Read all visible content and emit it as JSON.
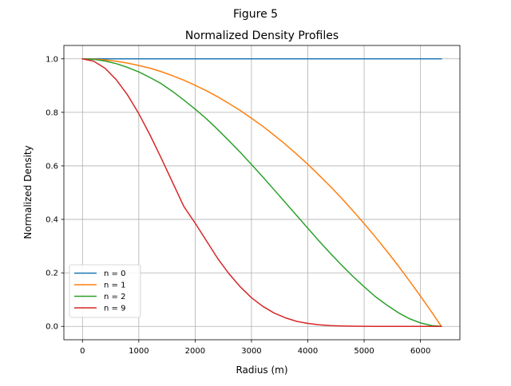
{
  "figure": {
    "suptitle": "Figure 5"
  },
  "chart_data": {
    "type": "line",
    "title": "Normalized Density Profiles",
    "xlabel": "Radius (m)",
    "ylabel": "Normalized Density",
    "xlim": [
      -330,
      6700
    ],
    "ylim": [
      -0.05,
      1.05
    ],
    "xticks": [
      0,
      1000,
      2000,
      3000,
      4000,
      5000,
      6000
    ],
    "xtick_labels": [
      "0",
      "1000",
      "2000",
      "3000",
      "4000",
      "5000",
      "6000"
    ],
    "yticks": [
      0.0,
      0.2,
      0.4,
      0.6,
      0.8,
      1.0
    ],
    "ytick_labels": [
      "0.0",
      "0.2",
      "0.4",
      "0.6",
      "0.8",
      "1.0"
    ],
    "grid": true,
    "legend_position": "lower-left",
    "x": [
      0,
      200,
      400,
      600,
      800,
      1000,
      1200,
      1400,
      1600,
      1800,
      2000,
      2200,
      2400,
      2600,
      2800,
      3000,
      3200,
      3400,
      3600,
      3800,
      4000,
      4200,
      4400,
      4600,
      4800,
      5000,
      5200,
      5400,
      5600,
      5800,
      6000,
      6200,
      6371
    ],
    "series": [
      {
        "name": "n = 0",
        "color": "#1f77b4",
        "values": [
          1.0,
          1.0,
          1.0,
          1.0,
          1.0,
          1.0,
          1.0,
          1.0,
          1.0,
          1.0,
          1.0,
          1.0,
          1.0,
          1.0,
          1.0,
          1.0,
          1.0,
          1.0,
          1.0,
          1.0,
          1.0,
          1.0,
          1.0,
          1.0,
          1.0,
          1.0,
          1.0,
          1.0,
          1.0,
          1.0,
          1.0,
          1.0,
          1.0
        ]
      },
      {
        "name": "n = 1",
        "color": "#ff7f0e",
        "values": [
          1.0,
          0.999,
          0.996,
          0.991,
          0.984,
          0.975,
          0.965,
          0.952,
          0.937,
          0.92,
          0.901,
          0.881,
          0.858,
          0.833,
          0.807,
          0.778,
          0.748,
          0.715,
          0.681,
          0.644,
          0.606,
          0.565,
          0.523,
          0.479,
          0.432,
          0.384,
          0.334,
          0.282,
          0.228,
          0.171,
          0.113,
          0.053,
          0.0
        ]
      },
      {
        "name": "n = 2",
        "color": "#2ca02c",
        "values": [
          1.0,
          0.998,
          0.992,
          0.982,
          0.968,
          0.951,
          0.93,
          0.907,
          0.878,
          0.846,
          0.812,
          0.776,
          0.736,
          0.694,
          0.651,
          0.605,
          0.559,
          0.511,
          0.463,
          0.415,
          0.367,
          0.319,
          0.273,
          0.229,
          0.187,
          0.148,
          0.111,
          0.08,
          0.052,
          0.029,
          0.013,
          0.003,
          0.0
        ]
      },
      {
        "name": "n = 9",
        "color": "#d62728",
        "values": [
          1.0,
          0.991,
          0.965,
          0.922,
          0.865,
          0.795,
          0.715,
          0.628,
          0.538,
          0.448,
          0.386,
          0.32,
          0.254,
          0.197,
          0.148,
          0.107,
          0.075,
          0.05,
          0.032,
          0.019,
          0.011,
          0.006,
          0.003,
          0.0015,
          0.0007,
          0.0003,
          0.0001,
          0.0,
          0.0,
          0.0,
          0.0,
          0.0,
          0.0
        ]
      }
    ]
  }
}
